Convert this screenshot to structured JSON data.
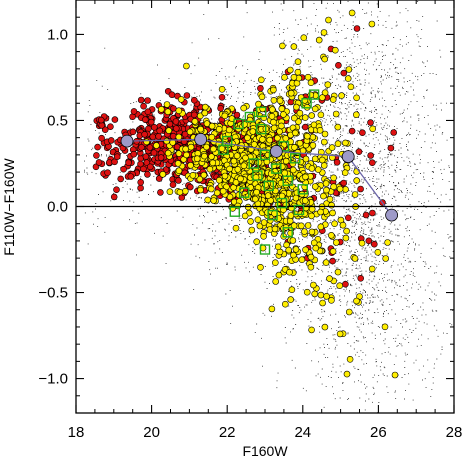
{
  "chart_data": {
    "type": "scatter",
    "title": "",
    "xlabel": "F160W",
    "ylabel": "F110W−F160W",
    "xlim": [
      18,
      28
    ],
    "ylim": [
      -1.2,
      1.2
    ],
    "x_ticks": [
      18,
      20,
      22,
      24,
      26,
      28
    ],
    "x_tick_labels": [
      "18",
      "20",
      "22",
      "24",
      "26",
      "28"
    ],
    "y_ticks": [
      -1.0,
      -0.5,
      0.0,
      0.5,
      1.0
    ],
    "y_tick_labels": [
      "−1.0",
      "−0.5",
      "0.0",
      "0.5",
      "1.0"
    ],
    "reference_line_y": 0.0,
    "grid": false,
    "legend": "none",
    "colors": {
      "field_points": "#333333",
      "red_points": "#dd1111",
      "yellow_points": "#ffee00",
      "green_squares": "#22aa22",
      "median_points": "#9e9ac8",
      "median_line": "#6a64a8",
      "reference_line": "#000000"
    },
    "series": [
      {
        "marker": "large circle, connected by line",
        "color": "#9e9ac8",
        "x": [
          19.35,
          21.3,
          23.3,
          25.2,
          26.35
        ],
        "y": [
          0.38,
          0.39,
          0.32,
          0.29,
          -0.05
        ]
      },
      {
        "marker": "open square",
        "color": "#22aa22",
        "x": [
          22.6,
          22.9,
          23.0,
          23.3,
          23.8,
          22.3,
          22.0,
          23.6,
          24.1,
          22.7,
          23.1,
          23.45,
          21.9,
          22.45,
          23.9,
          24.3,
          23.2,
          22.8,
          23.6,
          22.2,
          23.0,
          23.5,
          22.9,
          24.0
        ],
        "y": [
          0.52,
          0.45,
          0.3,
          0.22,
          0.28,
          0.48,
          0.38,
          0.15,
          0.6,
          0.25,
          0.12,
          0.02,
          0.33,
          0.08,
          -0.02,
          0.65,
          -0.05,
          0.18,
          -0.15,
          -0.03,
          -0.25,
          0.35,
          0.55,
          0.1
        ]
      }
    ],
    "point_clouds": [
      {
        "marker": "small dot",
        "color": "#333333",
        "approx_count": 9000,
        "x_range": [
          18.2,
          28
        ],
        "y_range": [
          -1.2,
          1.2
        ],
        "densest_near_x": 25.5
      },
      {
        "marker": "filled circle",
        "color": "#dd1111",
        "approx_count": 900,
        "x_range": [
          18.4,
          26.5
        ],
        "y_range": [
          -0.9,
          1.1
        ],
        "centre_line": [
          [
            18.6,
            0.37
          ],
          [
            21,
            0.36
          ],
          [
            23,
            0.28
          ],
          [
            25,
            0.2
          ],
          [
            26.5,
            0.1
          ]
        ]
      },
      {
        "marker": "filled circle",
        "color": "#ffee00",
        "approx_count": 1050,
        "x_range": [
          19.8,
          26.5
        ],
        "y_range": [
          -1.2,
          1.2
        ],
        "centre_line": [
          [
            20,
            0.35
          ],
          [
            22,
            0.28
          ],
          [
            23.5,
            0.18
          ],
          [
            25,
            0.08
          ],
          [
            26.5,
            -0.05
          ]
        ]
      }
    ]
  }
}
